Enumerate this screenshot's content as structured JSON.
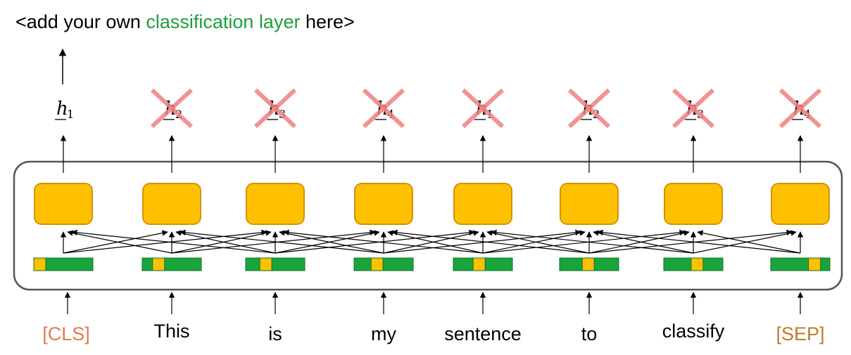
{
  "caption": {
    "prefix": "<add your own ",
    "highlight": "classification layer",
    "suffix": " here>"
  },
  "colors": {
    "highlight": "#1e9e3e",
    "block_fill": "#ffc000",
    "block_stroke": "#d4920a",
    "embed_green": "#1aa53c",
    "embed_yellow": "#ffc000",
    "special_token": "#e07b53",
    "sep_token": "#c07a2c",
    "cross": "#f08080",
    "container": "#555555"
  },
  "tokens": [
    "[CLS]",
    "This",
    "is",
    "my",
    "sentence",
    "to",
    "classify",
    "[SEP]"
  ],
  "outputs": [
    {
      "base": "h",
      "sub": "1",
      "crossed": false
    },
    {
      "base": "h",
      "sub": "2",
      "crossed": true
    },
    {
      "base": "h",
      "sub": "3",
      "crossed": true
    },
    {
      "base": "h",
      "sub": "4",
      "crossed": true
    },
    {
      "base": "h",
      "sub": "1",
      "crossed": true
    },
    {
      "base": "h",
      "sub": "2",
      "crossed": true
    },
    {
      "base": "h",
      "sub": "3",
      "crossed": true
    },
    {
      "base": "h",
      "sub": "4",
      "crossed": true
    }
  ]
}
